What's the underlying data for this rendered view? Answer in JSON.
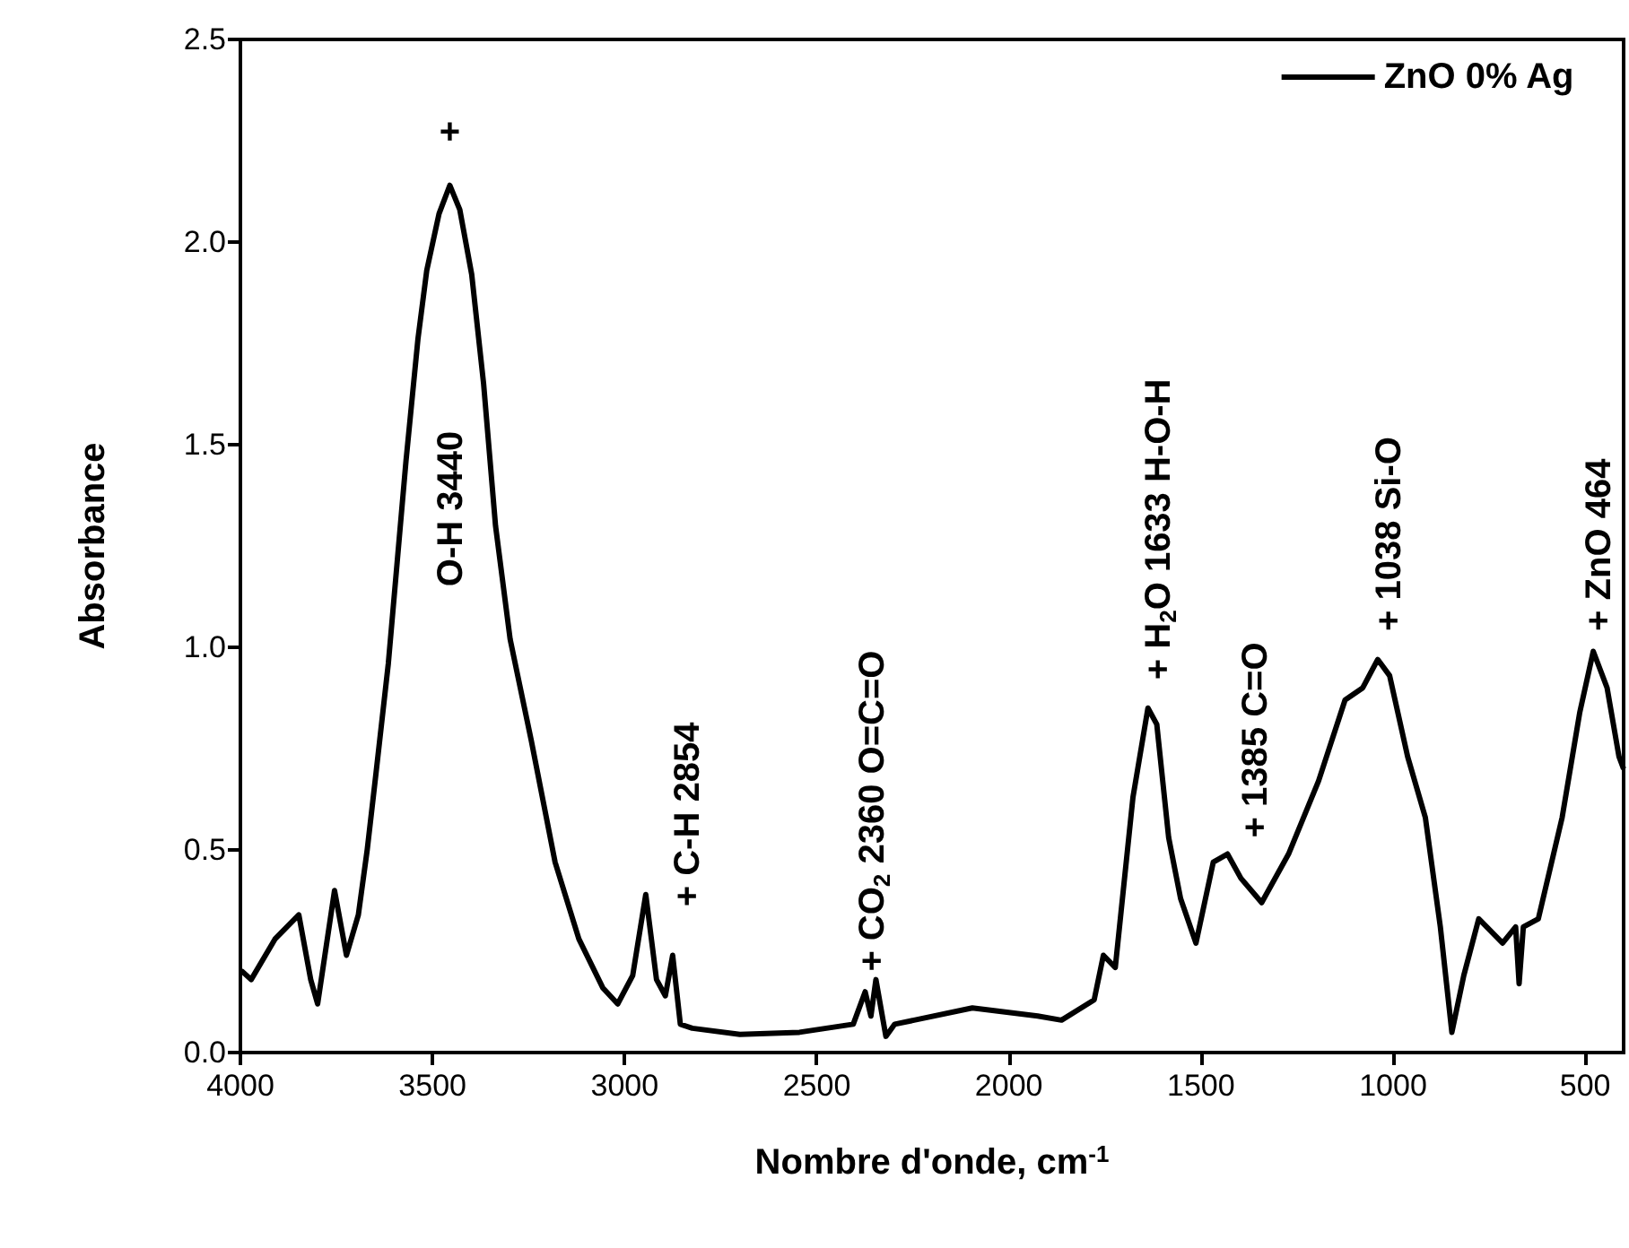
{
  "chart_data": {
    "type": "line",
    "xlabel": "Nombre d'onde, cm$^{-1}$",
    "ylabel": "Absorbance",
    "xlim": [
      4000,
      400
    ],
    "xticks": [
      4000,
      3500,
      3000,
      2500,
      2000,
      1500,
      1000,
      500
    ],
    "ylim": [
      0,
      2.5
    ],
    "yticks": [
      {
        "value": 0,
        "label": "0.0"
      },
      {
        "value": 0.5,
        "label": "0.5"
      },
      {
        "value": 1,
        "label": "1.0"
      },
      {
        "value": 1.5,
        "label": "1.5"
      },
      {
        "value": 2,
        "label": "2.0"
      },
      {
        "value": 2.5,
        "label": "2.5"
      }
    ],
    "grid": false,
    "legend": "top right",
    "marker": "none",
    "series": [
      {
        "name": "ZnO 0% Ag",
        "color": "#000000",
        "x": [
          4000,
          3995,
          3972,
          3910,
          3848,
          3817,
          3799,
          3755,
          3724,
          3693,
          3670,
          3647,
          3615,
          3592,
          3569,
          3538,
          3515,
          3483,
          3455,
          3429,
          3398,
          3367,
          3336,
          3298,
          3243,
          3181,
          3119,
          3057,
          3018,
          2979,
          2945,
          2917,
          2894,
          2875,
          2855,
          2824,
          2700,
          2545,
          2405,
          2374,
          2359,
          2346,
          2320,
          2297,
          2095,
          1925,
          1863,
          1778,
          1754,
          1723,
          1677,
          1638,
          1615,
          1584,
          1553,
          1513,
          1468,
          1431,
          1396,
          1342,
          1272,
          1194,
          1125,
          1079,
          1040,
          1009,
          962,
          916,
          877,
          847,
          816,
          777,
          715,
          681,
          672,
          661,
          622,
          560,
          514,
          479,
          443,
          412,
          400
        ],
        "values": [
          0.2,
          0.2,
          0.18,
          0.28,
          0.34,
          0.18,
          0.12,
          0.4,
          0.24,
          0.34,
          0.5,
          0.69,
          0.96,
          1.21,
          1.46,
          1.76,
          1.93,
          2.07,
          2.14,
          2.08,
          1.92,
          1.65,
          1.3,
          1.02,
          0.77,
          0.47,
          0.28,
          0.16,
          0.12,
          0.19,
          0.39,
          0.18,
          0.14,
          0.24,
          0.07,
          0.06,
          0.045,
          0.05,
          0.07,
          0.15,
          0.09,
          0.18,
          0.04,
          0.07,
          0.11,
          0.09,
          0.08,
          0.13,
          0.24,
          0.21,
          0.63,
          0.85,
          0.81,
          0.53,
          0.38,
          0.27,
          0.47,
          0.49,
          0.43,
          0.37,
          0.49,
          0.67,
          0.87,
          0.9,
          0.97,
          0.93,
          0.73,
          0.58,
          0.31,
          0.05,
          0.19,
          0.33,
          0.27,
          0.31,
          0.17,
          0.31,
          0.33,
          0.58,
          0.84,
          0.99,
          0.9,
          0.73,
          0.7
        ]
      }
    ],
    "annotations": [
      "+",
      "O-H 3440",
      "+ C-H 2854",
      "+ CO$_{2}$ 2360 O=C=O",
      "+ H$_{2}$O 1633 H-O-H",
      "+ 1385 C=O",
      "+ 1038 Si-O",
      "+ ZnO 464"
    ]
  }
}
